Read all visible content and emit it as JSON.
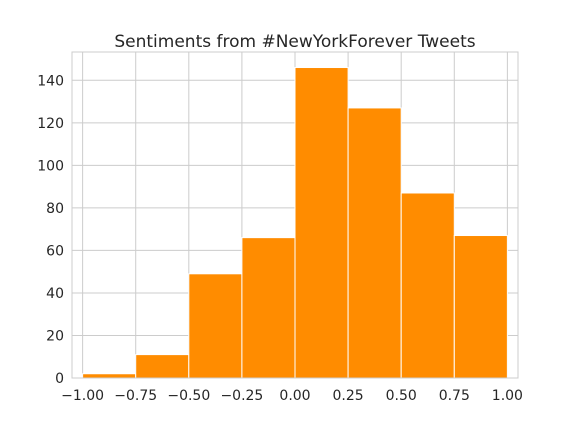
{
  "chart_data": {
    "type": "bar",
    "title": "Sentiments from #NewYorkForever Tweets",
    "xlabel": "",
    "ylabel": "",
    "bin_edges": [
      -1.0,
      -0.75,
      -0.5,
      -0.25,
      0.0,
      0.25,
      0.5,
      0.75,
      1.0
    ],
    "values": [
      2,
      11,
      49,
      66,
      146,
      127,
      87,
      67
    ],
    "xlim": [
      -1.05,
      1.05
    ],
    "ylim": [
      0,
      153.3
    ],
    "xticks": [
      "−1.00",
      "−0.75",
      "−0.50",
      "−0.25",
      "0.00",
      "0.25",
      "0.50",
      "0.75",
      "1.00"
    ],
    "xtick_values": [
      -1.0,
      -0.75,
      -0.5,
      -0.25,
      0.0,
      0.25,
      0.5,
      0.75,
      1.0
    ],
    "yticks": [
      "0",
      "20",
      "40",
      "60",
      "80",
      "100",
      "120",
      "140"
    ],
    "ytick_values": [
      0,
      20,
      40,
      60,
      80,
      100,
      120,
      140
    ],
    "grid": true,
    "bar_color": "#ff8c00",
    "grid_color": "#cccccc",
    "edge_color": "#ffffff"
  }
}
